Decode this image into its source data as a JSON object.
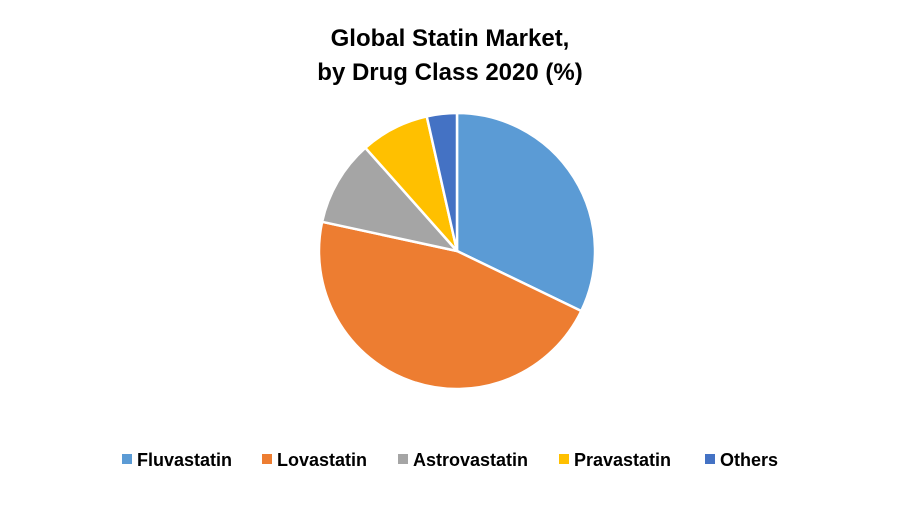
{
  "chart_data": {
    "type": "pie",
    "title": "Global Statin Market,",
    "subtitle": "by Drug Class 2020 (%)",
    "legend_position": "bottom",
    "series": [
      {
        "name": "Fluvastatin",
        "value": 32,
        "color": "#5B9BD5"
      },
      {
        "name": "Lovastatin",
        "value": 46,
        "color": "#ED7D31"
      },
      {
        "name": "Astrovastatin",
        "value": 10,
        "color": "#A5A5A5"
      },
      {
        "name": "Pravastatin",
        "value": 8,
        "color": "#FFC000"
      },
      {
        "name": "Others",
        "value": 3.5,
        "color": "#4472C4"
      }
    ]
  }
}
